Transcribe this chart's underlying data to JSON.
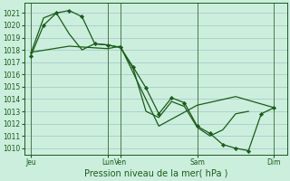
{
  "xlabel": "Pression niveau de la mer( hPa )",
  "background_color": "#cceedd",
  "grid_color": "#aacccc",
  "line_color": "#1a5c1a",
  "marker_color": "#1a5c1a",
  "ylim": [
    1009.5,
    1021.8
  ],
  "yticks": [
    1010,
    1011,
    1012,
    1013,
    1014,
    1015,
    1016,
    1017,
    1018,
    1019,
    1020,
    1021
  ],
  "xtick_labels": [
    "Jeu",
    "Lun",
    "Ven",
    "Sam",
    "Dim"
  ],
  "xtick_positions": [
    0,
    6,
    7,
    13,
    19
  ],
  "xlim": [
    -0.5,
    20.0
  ],
  "lines": [
    {
      "x": [
        0,
        1,
        2,
        3,
        4,
        5,
        6,
        7,
        8,
        9,
        10,
        11,
        12,
        13,
        14,
        15,
        16,
        17,
        18,
        19
      ],
      "y": [
        1017.5,
        1020.0,
        1021.0,
        1021.2,
        1020.7,
        1018.5,
        1018.4,
        1018.2,
        1016.6,
        1014.9,
        1012.8,
        1014.1,
        1013.7,
        1011.8,
        1011.2,
        1010.3,
        1010.0,
        1009.8,
        1012.8,
        1013.3
      ],
      "marker": true
    },
    {
      "x": [
        0,
        1,
        2,
        3,
        4,
        5,
        6,
        7,
        8,
        9,
        10,
        11,
        12,
        13,
        14,
        15,
        16,
        17
      ],
      "y": [
        1017.7,
        1020.6,
        1021.0,
        1019.3,
        1018.0,
        1018.5,
        1018.4,
        1018.2,
        1016.5,
        1013.0,
        1012.5,
        1013.8,
        1013.4,
        1011.7,
        1011.0,
        1011.5,
        1012.8,
        1013.0
      ],
      "marker": false
    },
    {
      "x": [
        0,
        3,
        6,
        7,
        10,
        13,
        16,
        19
      ],
      "y": [
        1017.8,
        1018.3,
        1018.1,
        1018.3,
        1011.8,
        1013.5,
        1014.2,
        1013.3
      ],
      "marker": false
    }
  ],
  "vlines": [
    0,
    6,
    7,
    13,
    19
  ],
  "vline_color": "#4a7a4a",
  "tick_fontsize": 5.5,
  "xlabel_fontsize": 7
}
